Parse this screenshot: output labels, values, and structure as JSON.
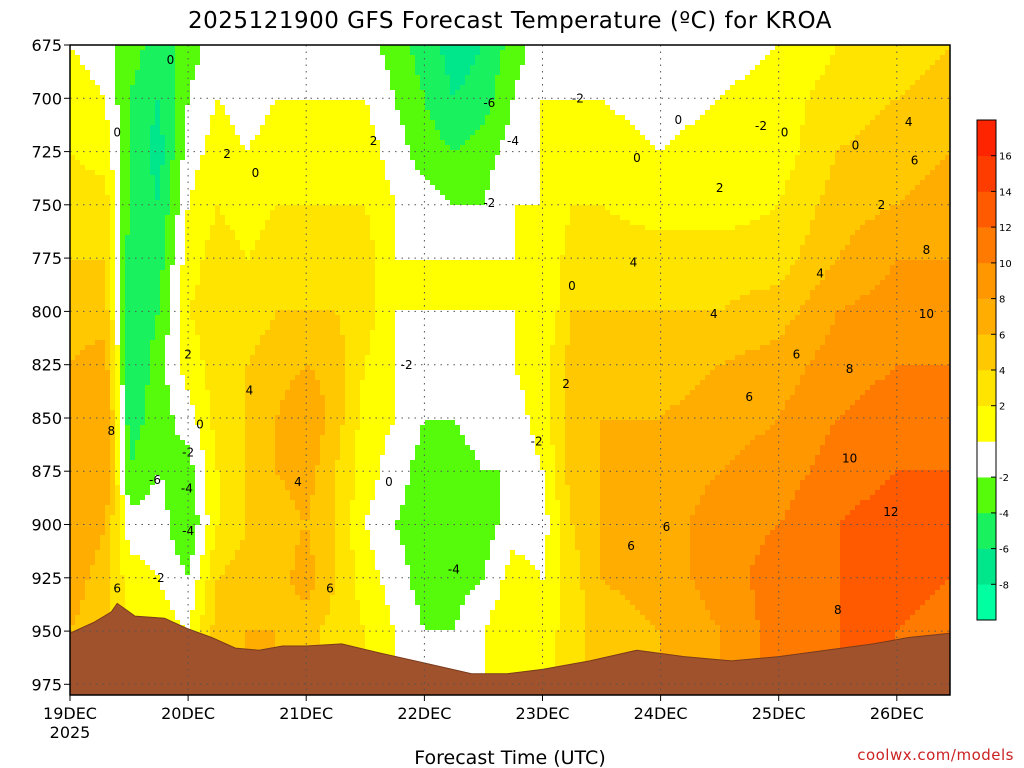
{
  "chart_data": {
    "type": "heatmap",
    "title": "2025121900 GFS Forecast Temperature (ºC) for KROA",
    "xlabel": "Forecast Time (UTC)",
    "ylabel": "",
    "credit": "coolwx.com/models",
    "y_axis": {
      "units": "hPa",
      "ticks": [
        675,
        700,
        725,
        750,
        775,
        800,
        825,
        850,
        875,
        900,
        925,
        950,
        975
      ],
      "range": [
        675,
        980
      ]
    },
    "x_axis": {
      "ticks": [
        "19DEC",
        "20DEC",
        "21DEC",
        "22DEC",
        "23DEC",
        "24DEC",
        "25DEC",
        "26DEC"
      ],
      "year": "2025",
      "range_days": [
        0,
        7.45
      ]
    },
    "colorbar": {
      "levels": [
        -10,
        -8,
        -6,
        -4,
        -2,
        0,
        2,
        4,
        6,
        8,
        10,
        12,
        14,
        16,
        18
      ],
      "tick_labels": [
        "-8",
        "-6",
        "-4",
        "-2",
        "2",
        "4",
        "6",
        "8",
        "10",
        "12",
        "14",
        "16"
      ],
      "colors": [
        "#00ffa0",
        "#00e68a",
        "#19f25e",
        "#55fb0a",
        "#ffffff",
        "#ffff00",
        "#ffe400",
        "#ffc800",
        "#ffad00",
        "#ff9700",
        "#ff7a00",
        "#ff5a00",
        "#ff3c00",
        "#ff2400"
      ]
    },
    "columns": [
      {
        "t": 0.0,
        "temps": [
          0,
          1,
          2,
          3,
          4,
          5,
          6,
          7,
          7,
          8,
          7,
          6
        ]
      },
      {
        "t": 0.3,
        "temps": [
          -1,
          0,
          1,
          3,
          4,
          5,
          7,
          8,
          8,
          6,
          5,
          5
        ]
      },
      {
        "t": 0.5,
        "temps": [
          -3,
          -4,
          -4,
          -4,
          -5,
          -6,
          -6,
          -5,
          -4,
          -1,
          1,
          2
        ]
      },
      {
        "t": 0.75,
        "temps": [
          -5,
          -6,
          -7,
          -6,
          -5,
          -4,
          -3,
          -3,
          -2,
          -1,
          0,
          1
        ]
      },
      {
        "t": 1.0,
        "temps": [
          -3,
          -2,
          -1,
          0,
          1,
          2,
          1,
          -1,
          -3,
          -4,
          -2,
          0
        ]
      },
      {
        "t": 1.25,
        "temps": [
          -1,
          0,
          1,
          2,
          3,
          3,
          3,
          3,
          2,
          2,
          4,
          5
        ]
      },
      {
        "t": 1.5,
        "temps": [
          -2,
          -1,
          0,
          1,
          2,
          3,
          4,
          4,
          4,
          4,
          5,
          6
        ]
      },
      {
        "t": 1.75,
        "temps": [
          -1,
          0,
          1,
          2,
          3,
          4,
          5,
          6,
          6,
          5,
          5,
          6
        ]
      },
      {
        "t": 2.0,
        "temps": [
          -1,
          0,
          1,
          2,
          3,
          4,
          6,
          8,
          7,
          6,
          7,
          5
        ]
      },
      {
        "t": 2.25,
        "temps": [
          0,
          0,
          1,
          2,
          3,
          4,
          5,
          5,
          4,
          4,
          4,
          3
        ]
      },
      {
        "t": 2.5,
        "temps": [
          -1,
          0,
          1,
          2,
          3,
          3,
          2,
          1,
          1,
          0,
          1,
          2
        ]
      },
      {
        "t": 2.75,
        "temps": [
          -3,
          -2,
          -1,
          0,
          0,
          0,
          0,
          0,
          -1,
          -2,
          -1,
          0
        ]
      },
      {
        "t": 3.0,
        "temps": [
          -5,
          -4,
          -3,
          -1,
          0,
          0,
          -1,
          -2,
          -3,
          -3,
          -3,
          -2
        ]
      },
      {
        "t": 3.25,
        "temps": [
          -7,
          -6,
          -4,
          -2,
          0,
          0,
          -1,
          -2,
          -3,
          -4,
          -3,
          -2
        ]
      },
      {
        "t": 3.5,
        "temps": [
          -6,
          -5,
          -3,
          -2,
          0,
          0,
          -1,
          -1,
          -2,
          -3,
          -2,
          0
        ]
      },
      {
        "t": 3.75,
        "temps": [
          -3,
          -2,
          -1,
          0,
          0,
          0,
          0,
          -1,
          -2,
          -1,
          1,
          2
        ]
      },
      {
        "t": 4.0,
        "temps": [
          -1,
          0,
          0,
          0,
          0,
          0,
          1,
          1,
          0,
          -1,
          0,
          1
        ]
      },
      {
        "t": 4.25,
        "temps": [
          -1,
          0,
          0,
          2,
          3,
          4,
          5,
          5,
          5,
          4,
          3,
          3
        ]
      },
      {
        "t": 4.5,
        "temps": [
          -1,
          0,
          1,
          2,
          3,
          4,
          5,
          6,
          6,
          6,
          6,
          5
        ]
      },
      {
        "t": 5.0,
        "temps": [
          -1,
          -1,
          0,
          1,
          3,
          4,
          5,
          6,
          7,
          7,
          7,
          6
        ]
      },
      {
        "t": 5.5,
        "temps": [
          -1,
          0,
          1,
          1,
          3,
          4,
          6,
          7,
          8,
          9,
          9,
          8
        ]
      },
      {
        "t": 6.0,
        "temps": [
          0,
          1,
          1,
          2,
          3,
          5,
          7,
          8,
          9,
          10,
          11,
          11
        ]
      },
      {
        "t": 6.5,
        "temps": [
          2,
          3,
          4,
          5,
          6,
          8,
          9,
          10,
          11,
          12,
          12,
          12
        ]
      },
      {
        "t": 7.0,
        "temps": [
          3,
          4,
          5,
          6,
          8,
          9,
          10,
          11,
          12,
          13,
          13,
          12
        ]
      },
      {
        "t": 7.45,
        "temps": [
          4,
          5,
          6,
          7,
          8,
          9,
          10,
          11,
          12,
          12,
          12,
          11
        ]
      }
    ],
    "column_levels": [
      675,
      700,
      725,
      750,
      775,
      800,
      825,
      850,
      875,
      900,
      925,
      950
    ],
    "terrain": [
      {
        "t": 0.0,
        "p": 951
      },
      {
        "t": 0.2,
        "p": 946
      },
      {
        "t": 0.35,
        "p": 941
      },
      {
        "t": 0.4,
        "p": 937
      },
      {
        "t": 0.55,
        "p": 943
      },
      {
        "t": 0.8,
        "p": 944
      },
      {
        "t": 1.0,
        "p": 949
      },
      {
        "t": 1.2,
        "p": 953
      },
      {
        "t": 1.4,
        "p": 958
      },
      {
        "t": 1.6,
        "p": 959
      },
      {
        "t": 1.8,
        "p": 957
      },
      {
        "t": 2.0,
        "p": 957
      },
      {
        "t": 2.3,
        "p": 956
      },
      {
        "t": 2.6,
        "p": 960
      },
      {
        "t": 3.0,
        "p": 965
      },
      {
        "t": 3.4,
        "p": 970
      },
      {
        "t": 3.7,
        "p": 970
      },
      {
        "t": 4.0,
        "p": 968
      },
      {
        "t": 4.4,
        "p": 964
      },
      {
        "t": 4.8,
        "p": 959
      },
      {
        "t": 5.2,
        "p": 962
      },
      {
        "t": 5.6,
        "p": 964
      },
      {
        "t": 6.0,
        "p": 962
      },
      {
        "t": 6.4,
        "p": 959
      },
      {
        "t": 6.8,
        "p": 956
      },
      {
        "t": 7.1,
        "p": 953
      },
      {
        "t": 7.45,
        "p": 951
      }
    ],
    "contour_labels": [
      {
        "t": 0.4,
        "p": 718,
        "text": "0"
      },
      {
        "t": 0.85,
        "p": 684,
        "text": "0"
      },
      {
        "t": 1.33,
        "p": 728,
        "text": "2"
      },
      {
        "t": 1.57,
        "p": 737,
        "text": "0"
      },
      {
        "t": 2.57,
        "p": 722,
        "text": "2"
      },
      {
        "t": 3.55,
        "p": 704,
        "text": "-6"
      },
      {
        "t": 3.75,
        "p": 722,
        "text": "-4"
      },
      {
        "t": 3.55,
        "p": 751,
        "text": "-2"
      },
      {
        "t": 4.3,
        "p": 702,
        "text": "-2"
      },
      {
        "t": 5.15,
        "p": 712,
        "text": "0"
      },
      {
        "t": 4.8,
        "p": 730,
        "text": "0"
      },
      {
        "t": 5.85,
        "p": 715,
        "text": "-2"
      },
      {
        "t": 6.05,
        "p": 718,
        "text": "0"
      },
      {
        "t": 6.65,
        "p": 724,
        "text": "0"
      },
      {
        "t": 7.1,
        "p": 713,
        "text": "4"
      },
      {
        "t": 6.87,
        "p": 752,
        "text": "2"
      },
      {
        "t": 5.5,
        "p": 744,
        "text": "2"
      },
      {
        "t": 7.15,
        "p": 731,
        "text": "6"
      },
      {
        "t": 4.77,
        "p": 779,
        "text": "4"
      },
      {
        "t": 4.25,
        "p": 790,
        "text": "0"
      },
      {
        "t": 6.35,
        "p": 784,
        "text": "4"
      },
      {
        "t": 7.25,
        "p": 773,
        "text": "8"
      },
      {
        "t": 5.45,
        "p": 803,
        "text": "4"
      },
      {
        "t": 7.25,
        "p": 803,
        "text": "10"
      },
      {
        "t": 6.15,
        "p": 822,
        "text": "6"
      },
      {
        "t": 6.6,
        "p": 829,
        "text": "8"
      },
      {
        "t": 0.35,
        "p": 858,
        "text": "8"
      },
      {
        "t": 1.0,
        "p": 822,
        "text": "2"
      },
      {
        "t": 1.52,
        "p": 839,
        "text": "4"
      },
      {
        "t": 1.1,
        "p": 855,
        "text": "0"
      },
      {
        "t": 1.0,
        "p": 868,
        "text": "-2"
      },
      {
        "t": 0.72,
        "p": 881,
        "text": "-6"
      },
      {
        "t": 0.99,
        "p": 885,
        "text": "-4"
      },
      {
        "t": 1.0,
        "p": 905,
        "text": "-4"
      },
      {
        "t": 0.75,
        "p": 927,
        "text": "-2"
      },
      {
        "t": 0.4,
        "p": 932,
        "text": "6"
      },
      {
        "t": 1.93,
        "p": 882,
        "text": "4"
      },
      {
        "t": 2.2,
        "p": 932,
        "text": "6"
      },
      {
        "t": 2.85,
        "p": 827,
        "text": "-2"
      },
      {
        "t": 2.7,
        "p": 882,
        "text": "0"
      },
      {
        "t": 3.95,
        "p": 863,
        "text": "-2"
      },
      {
        "t": 4.2,
        "p": 836,
        "text": "2"
      },
      {
        "t": 3.25,
        "p": 923,
        "text": "-4"
      },
      {
        "t": 4.75,
        "p": 912,
        "text": "6"
      },
      {
        "t": 5.05,
        "p": 903,
        "text": "6"
      },
      {
        "t": 5.75,
        "p": 842,
        "text": "6"
      },
      {
        "t": 6.6,
        "p": 871,
        "text": "10"
      },
      {
        "t": 6.95,
        "p": 896,
        "text": "12"
      },
      {
        "t": 6.5,
        "p": 942,
        "text": "8"
      }
    ]
  }
}
